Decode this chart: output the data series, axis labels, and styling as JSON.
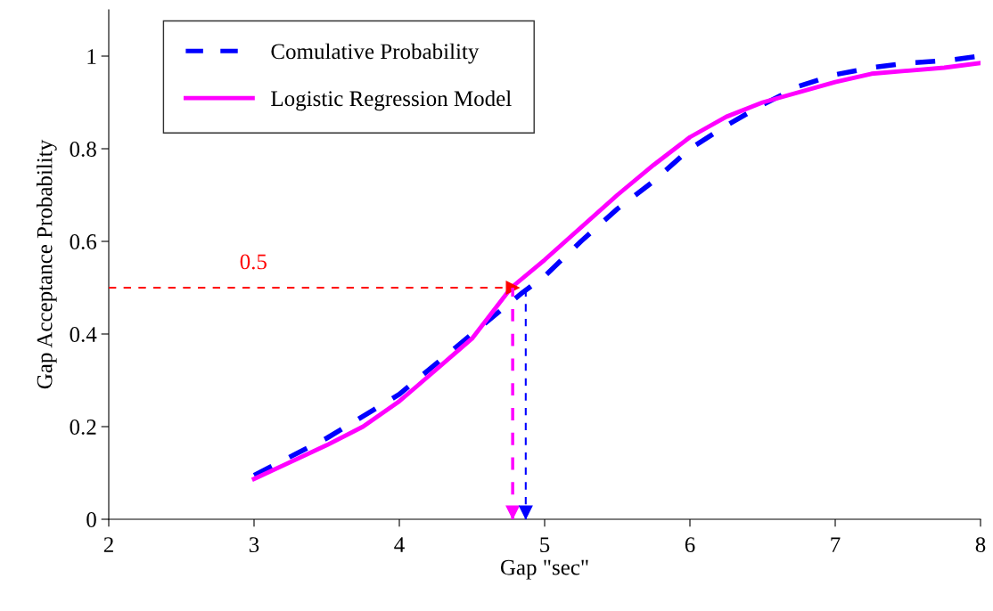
{
  "chart_data": {
    "type": "line",
    "xlabel": "Gap \"sec\"",
    "ylabel": "Gap Acceptance Probability",
    "xlim": [
      2,
      8
    ],
    "xticks": [
      2,
      3,
      4,
      5,
      6,
      7,
      8
    ],
    "ylim": [
      0,
      1.1
    ],
    "yticks": [
      0,
      0.2,
      0.4,
      0.6,
      0.8,
      1
    ],
    "grid": false,
    "legend": "top left",
    "marker": "none",
    "series": [
      {
        "name": "Comulative Probability",
        "color": "#0000ff",
        "line_style": "dashed",
        "x": [
          3,
          3.5,
          4,
          4.5,
          4.85,
          5,
          5.25,
          5.5,
          5.75,
          6,
          6.25,
          6.5,
          6.75,
          7,
          7.25,
          7.5,
          7.75,
          8
        ],
        "values": [
          0.095,
          0.175,
          0.27,
          0.4,
          0.49,
          0.525,
          0.6,
          0.67,
          0.73,
          0.8,
          0.85,
          0.895,
          0.935,
          0.96,
          0.975,
          0.985,
          0.99,
          1.0
        ]
      },
      {
        "name": "Logistic Regression Model",
        "color": "#ff00ff",
        "line_style": "solid",
        "x": [
          3,
          3.5,
          3.75,
          4,
          4.12,
          4.5,
          4.77,
          5,
          5.5,
          5.75,
          6,
          6.25,
          6.5,
          7,
          7.25,
          7.75,
          8
        ],
        "values": [
          0.087,
          0.16,
          0.2,
          0.255,
          0.287,
          0.39,
          0.5,
          0.56,
          0.7,
          0.765,
          0.825,
          0.869,
          0.9,
          0.944,
          0.962,
          0.975,
          0.985
        ]
      }
    ],
    "ref_lines": [
      {
        "axis": "y",
        "value": 0.5,
        "label": "0.5",
        "color": "#ff0000",
        "line_style": "dashed"
      },
      {
        "axis": "x",
        "value": 4.78,
        "color": "#ff00ff",
        "line_style": "dashed"
      },
      {
        "axis": "x",
        "value": 4.87,
        "color": "#0000ff",
        "line_style": "dashed"
      }
    ]
  }
}
